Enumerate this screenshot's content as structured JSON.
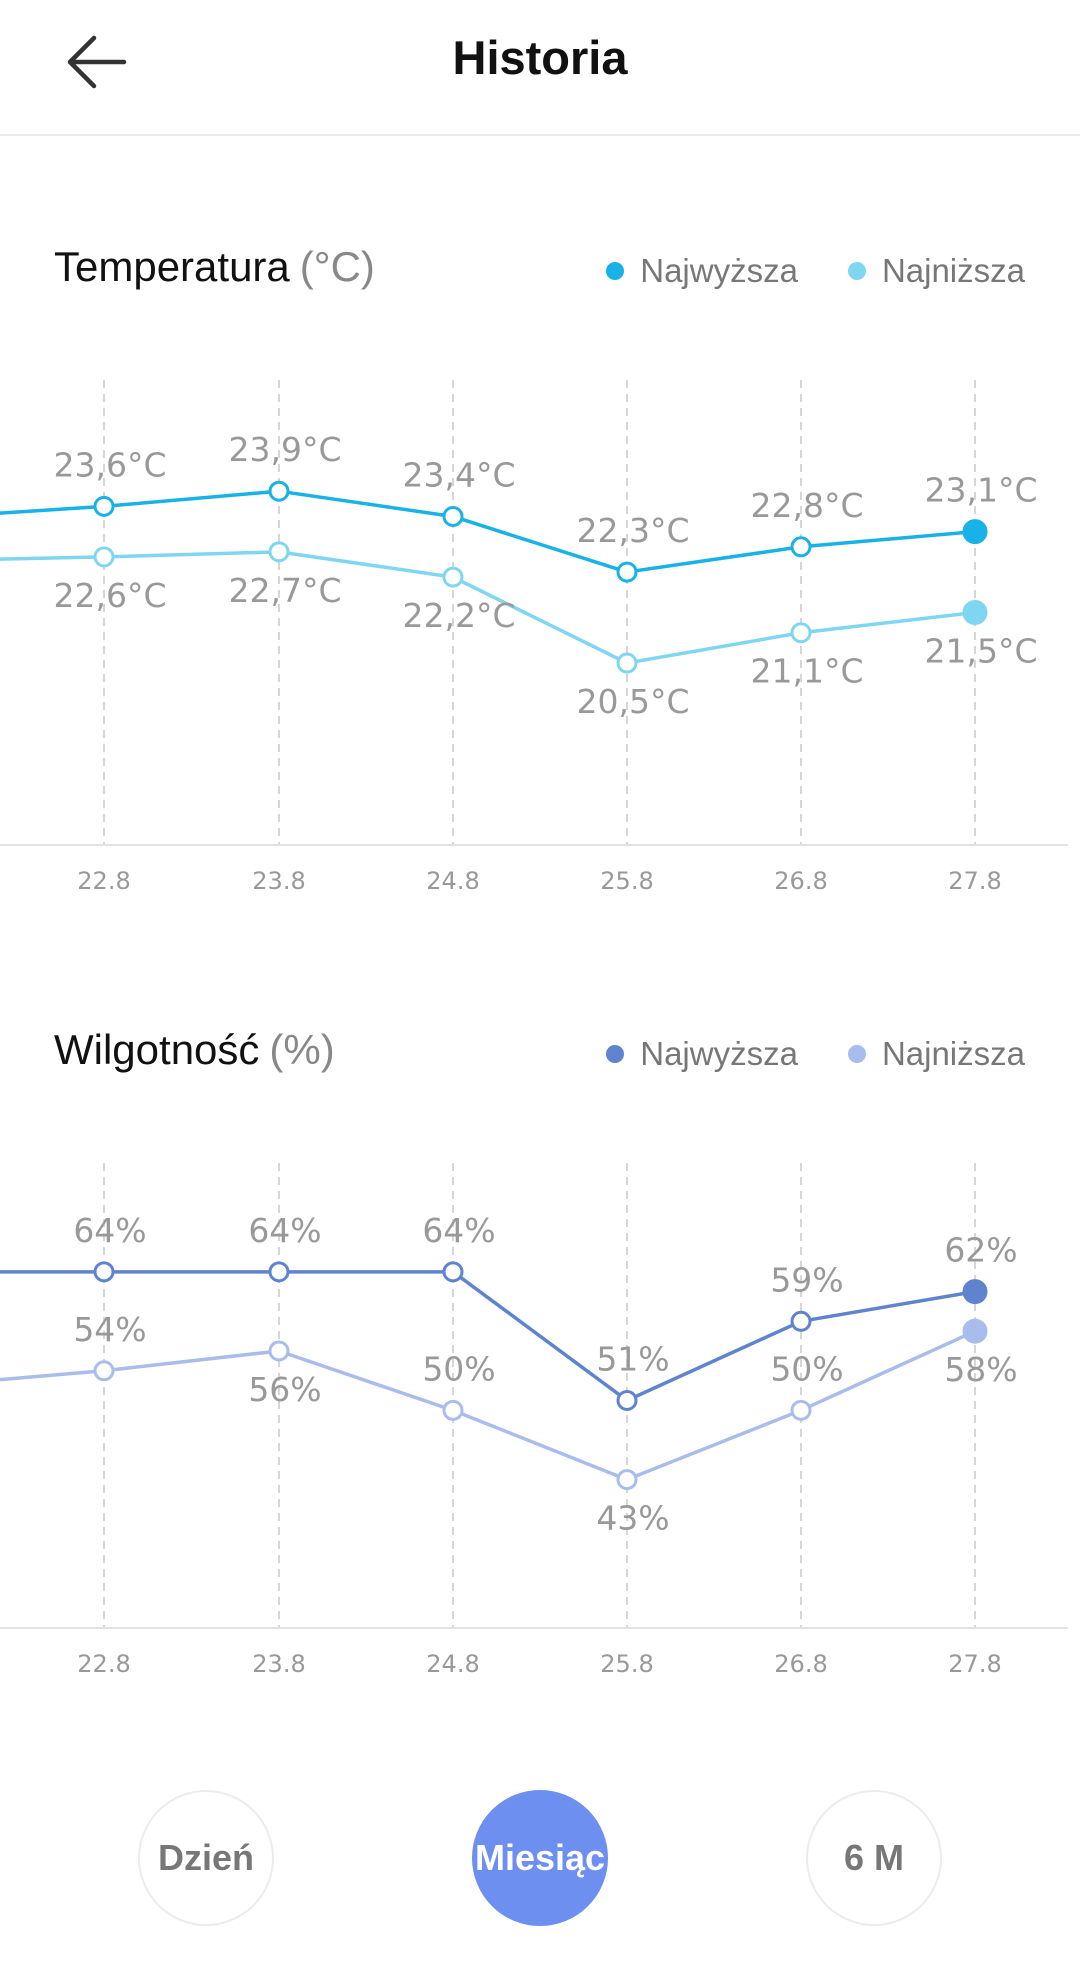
{
  "header": {
    "title": "Historia"
  },
  "temperature": {
    "title": "Temperatura",
    "unit": "(°C)",
    "legend": {
      "high": "Najwyższa",
      "low": "Najniższa"
    },
    "colors": {
      "high": "#18b2e6",
      "low": "#7fd6f0"
    }
  },
  "humidity": {
    "title": "Wilgotność",
    "unit": "(%)",
    "legend": {
      "high": "Najwyższa",
      "low": "Najniższa"
    },
    "colors": {
      "high": "#5f84cf",
      "low": "#a8bdeb"
    }
  },
  "tabs": {
    "day": "Dzień",
    "month": "Miesiąc",
    "six_months": "6 M",
    "active": "month"
  },
  "chart_data": [
    {
      "type": "line",
      "title": "Temperatura (°C)",
      "categories": [
        "22.8",
        "23.8",
        "24.8",
        "25.8",
        "26.8",
        "27.8"
      ],
      "series": [
        {
          "name": "Najwyższa",
          "values": [
            23.6,
            23.9,
            23.4,
            22.3,
            22.8,
            23.1
          ],
          "labels": [
            "23,6°C",
            "23,9°C",
            "23,4°C",
            "22,3°C",
            "22,8°C",
            "23,1°C"
          ]
        },
        {
          "name": "Najniższa",
          "values": [
            22.6,
            22.7,
            22.2,
            20.5,
            21.1,
            21.5
          ],
          "labels": [
            "22,6°C",
            "22,7°C",
            "22,2°C",
            "20,5°C",
            "21,1°C",
            "21,5°C"
          ]
        }
      ],
      "ylim": [
        16.9,
        26.1
      ]
    },
    {
      "type": "line",
      "title": "Wilgotność (%)",
      "categories": [
        "22.8",
        "23.8",
        "24.8",
        "25.8",
        "26.8",
        "27.8"
      ],
      "series": [
        {
          "name": "Najwyższa",
          "values": [
            64,
            64,
            64,
            51,
            59,
            62
          ],
          "labels": [
            "64%",
            "64%",
            "64%",
            "51%",
            "59%",
            "62%"
          ]
        },
        {
          "name": "Najniższa",
          "values": [
            54,
            56,
            50,
            43,
            50,
            58
          ],
          "labels": [
            "54%",
            "56%",
            "50%",
            "43%",
            "50%",
            "58%"
          ]
        }
      ],
      "ylim": [
        28,
        75
      ]
    }
  ]
}
